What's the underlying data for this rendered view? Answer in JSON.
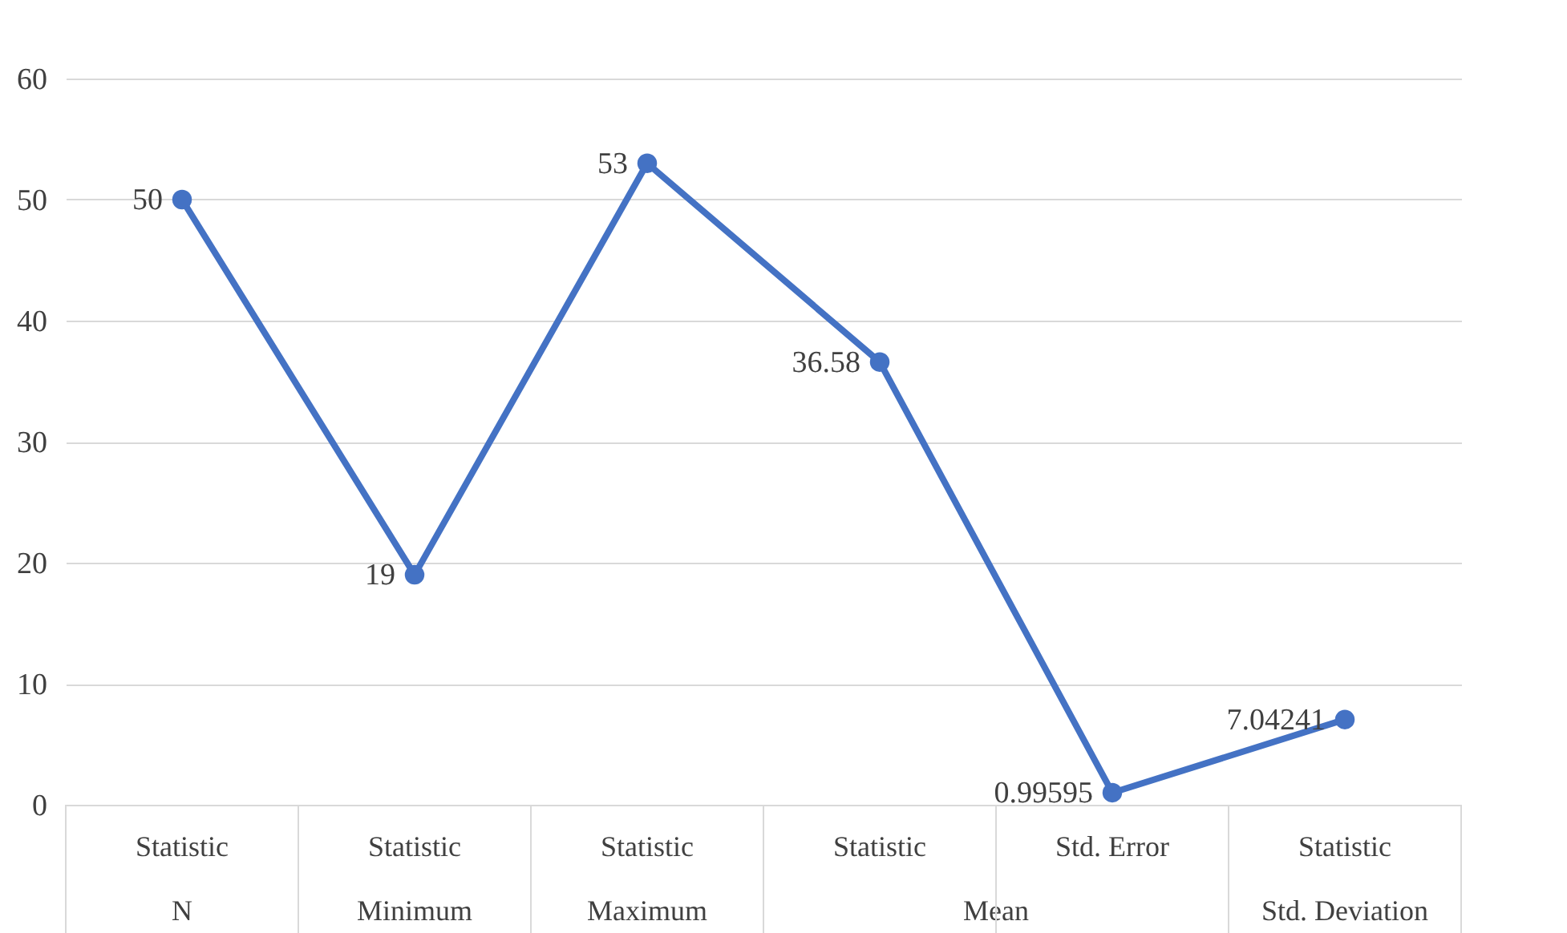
{
  "chart_data": {
    "type": "line",
    "categories": [
      "Statistic\nN",
      "Statistic\nMinimum",
      "Statistic\nMaximum",
      "Statistic",
      "Std. Error",
      "Statistic\nStd. Deviation"
    ],
    "annotations": [
      "Mean"
    ],
    "series": [
      {
        "color": "#4472c4",
        "values": [
          50,
          19,
          53,
          36.58,
          0.99595,
          7.04241
        ]
      }
    ],
    "ylim": [
      0,
      60
    ],
    "yticks": [
      0,
      10,
      20,
      30,
      40,
      50,
      60
    ],
    "grid": "y",
    "marker": "circle",
    "data_labels": true
  }
}
